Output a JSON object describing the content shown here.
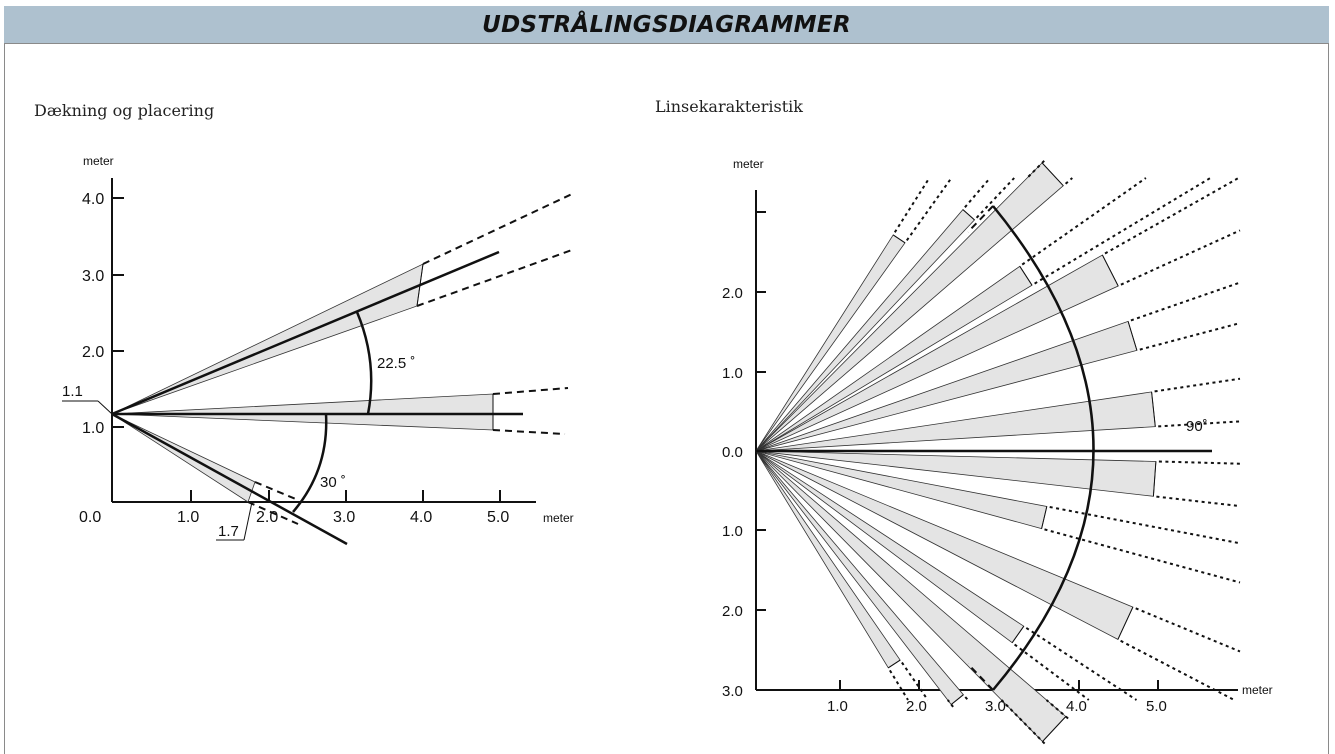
{
  "title": "UDSTRÅLINGSDIAGRAMMER",
  "colors": {
    "title_bar": "#aec1cf",
    "beam_fill": "#e4e4e4",
    "line": "#111111"
  },
  "left_panel": {
    "heading": "Dækning og placering",
    "y_unit": "meter",
    "x_unit": "meter",
    "y_ticks": [
      "4.0",
      "3.0",
      "2.0",
      "1.0"
    ],
    "origin_label": "0.0",
    "x_ticks": [
      "1.0",
      "2.0",
      "3.0",
      "4.0",
      "5.0"
    ],
    "mount_height_label": "1.1",
    "near_distance_label": "1.7",
    "angle_upper": "22.5 ˚",
    "angle_lower": "30 ˚"
  },
  "right_panel": {
    "heading": "Linsekarakteristik",
    "y_unit": "meter",
    "x_unit": "meter",
    "y_ticks_upper": [
      "2.0",
      "1.0"
    ],
    "y_tick_center": "0.0",
    "y_ticks_lower": [
      "1.0",
      "2.0",
      "3.0"
    ],
    "x_ticks": [
      "1.0",
      "2.0",
      "3.0",
      "4.0",
      "5.0"
    ],
    "angle_label": "90˚"
  }
}
